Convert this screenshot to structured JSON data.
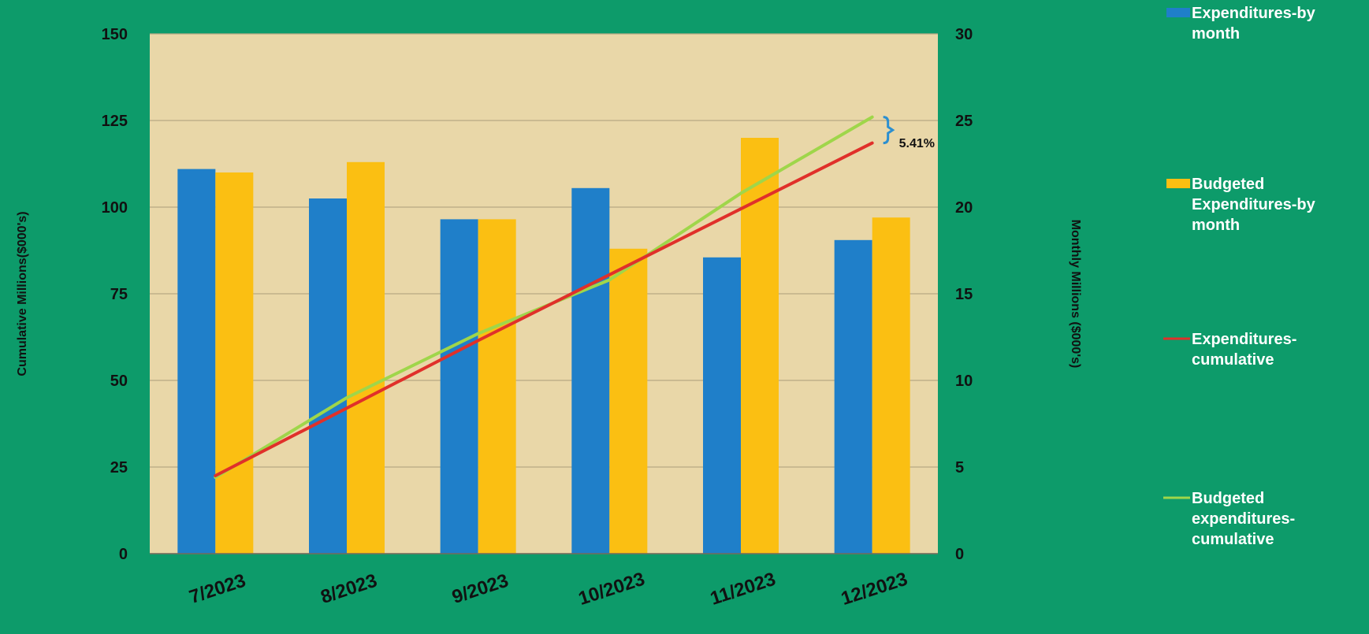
{
  "colors": {
    "background": "#0d9b6a",
    "plot_area": "#e9d7a8",
    "gridline": "#b9a883",
    "axis_text": "#111111",
    "legend_text": "#ffffff",
    "expenditures_monthly": "#1f7fc9",
    "budgeted_monthly": "#fbbf12",
    "expenditures_cumulative": "#e0302a",
    "budgeted_cumulative": "#9fd64a",
    "bracket": "#2b8fd0"
  },
  "chart_data": {
    "type": "bar",
    "title": "",
    "xlabel": "",
    "ylabel_left": "Cumulative Millions($000's)",
    "ylabel_right": "Monthly Millions ($000's)",
    "categories": [
      "7/2023",
      "8/2023",
      "9/2023",
      "10/2023",
      "11/2023",
      "12/2023"
    ],
    "y_left": {
      "min": 0,
      "max": 150,
      "ticks": [
        "0",
        "25",
        "50",
        "75",
        "100",
        "125",
        "150"
      ]
    },
    "y_right": {
      "min": 0,
      "max": 30,
      "ticks": [
        "0",
        "5",
        "10",
        "15",
        "20",
        "25",
        "30"
      ]
    },
    "grid": true,
    "legend_position": "right",
    "series": [
      {
        "name": "Expenditures-by month",
        "type": "bar",
        "axis": "right",
        "values": [
          22.2,
          20.5,
          19.3,
          21.1,
          17.1,
          18.1
        ]
      },
      {
        "name": "Budgeted Expenditures-by month",
        "type": "bar",
        "axis": "right",
        "values": [
          22.0,
          22.6,
          19.3,
          17.6,
          24.0,
          19.4
        ]
      },
      {
        "name": "Expenditures-cumulative",
        "type": "line",
        "axis": "left",
        "values": [
          22.5,
          42.0,
          61.5,
          80.5,
          99.5,
          118.5
        ]
      },
      {
        "name": "Budgeted expenditures-cumulative",
        "type": "line",
        "axis": "left",
        "values": [
          22.0,
          45.0,
          63.5,
          79.0,
          104.0,
          126.0
        ]
      }
    ],
    "annotation": {
      "text": "5.41%",
      "category": "12/2023"
    }
  },
  "legend": [
    {
      "lines": [
        "Expenditures-by",
        "month"
      ]
    },
    {
      "lines": [
        "Budgeted",
        "Expenditures-by",
        "month"
      ]
    },
    {
      "lines": [
        "Expenditures-",
        "cumulative"
      ]
    },
    {
      "lines": [
        "Budgeted",
        "expenditures-",
        "cumulative"
      ]
    }
  ]
}
